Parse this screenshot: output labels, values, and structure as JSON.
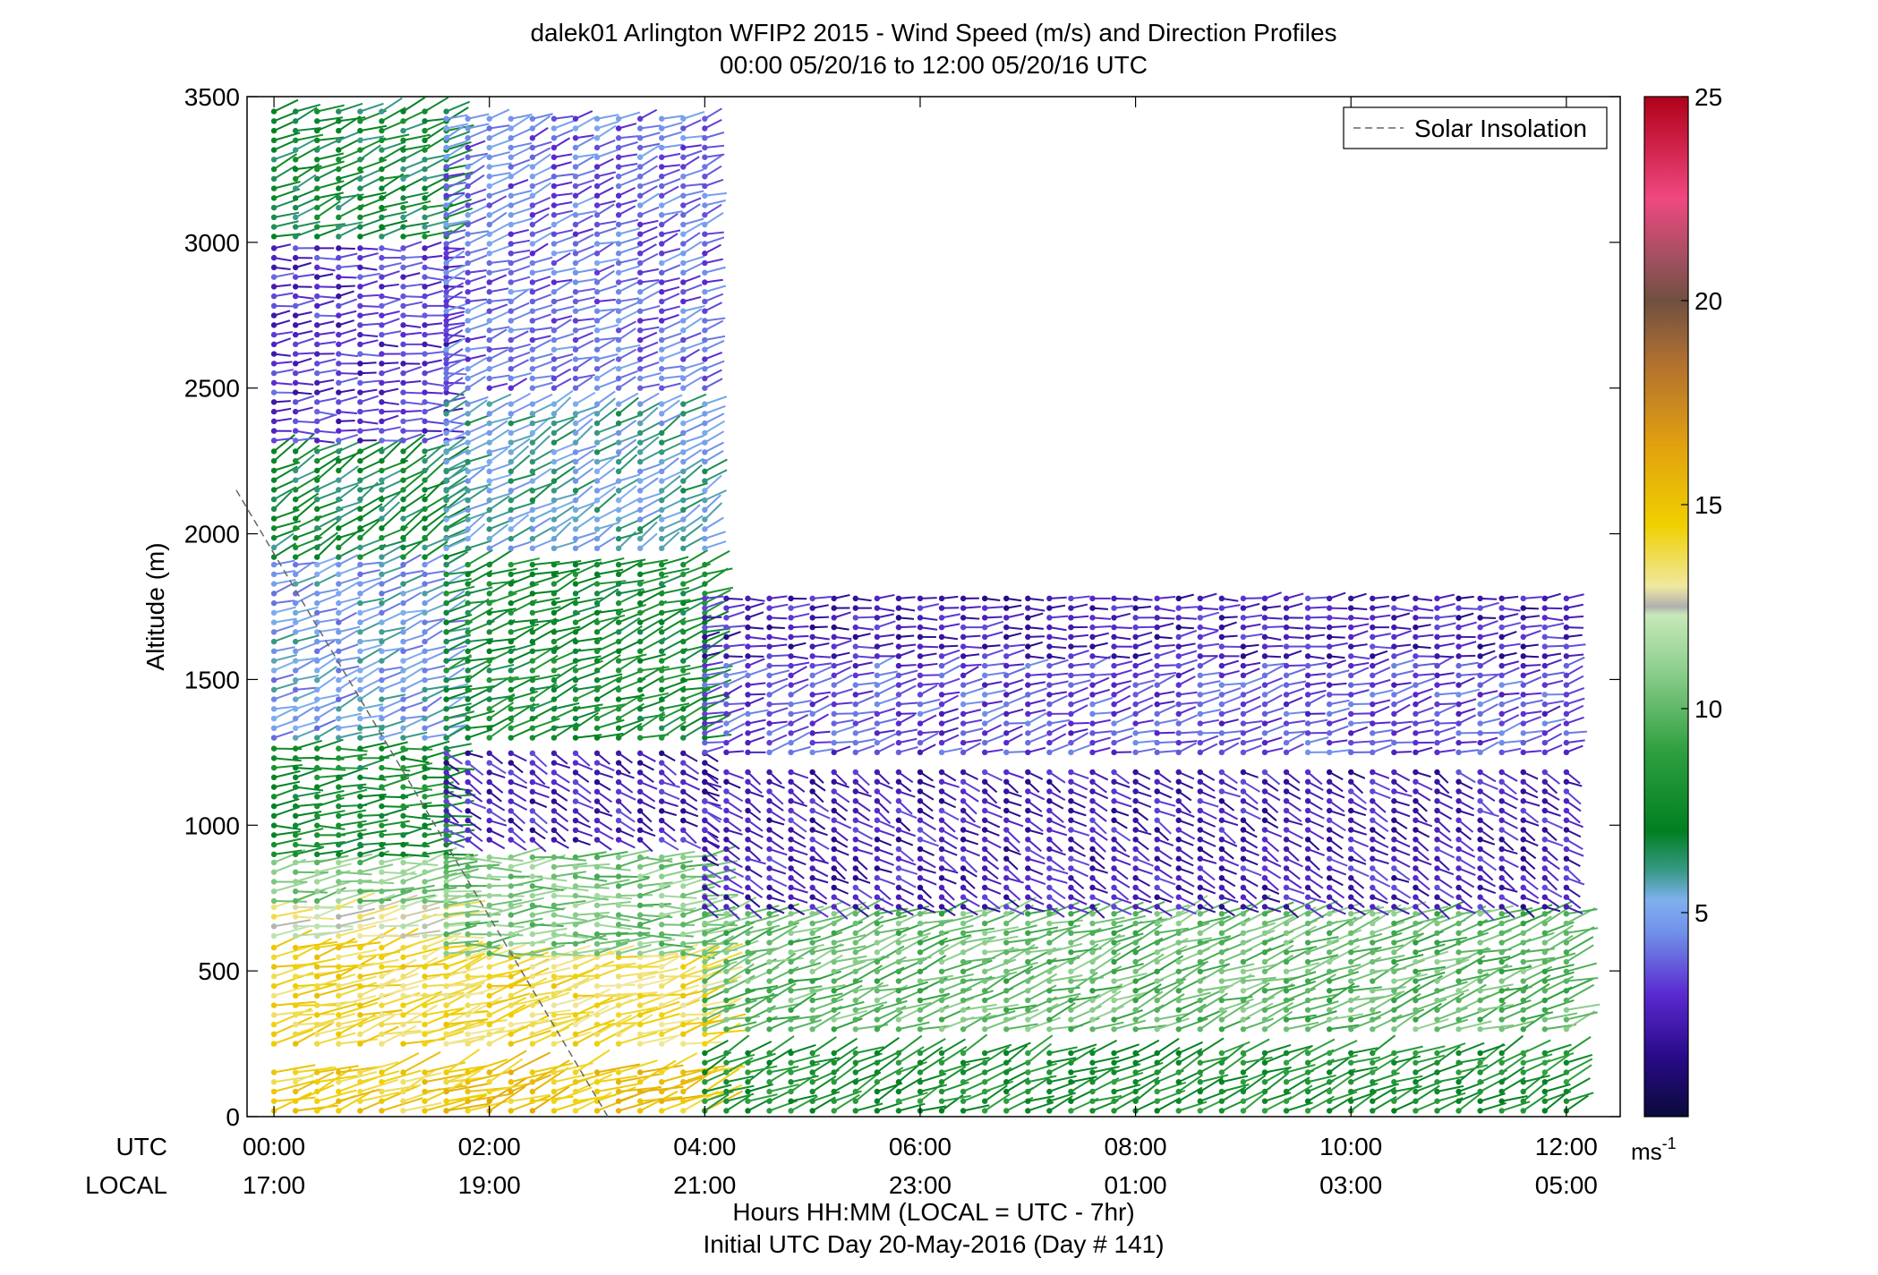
{
  "chart_data": {
    "type": "scatter",
    "title": "dalek01 Arlington WFIP2 2015 - Wind Speed (m/s) and Direction Profiles",
    "subtitle": "00:00 05/20/16 to 12:00 05/20/16  UTC",
    "xlabel": "Hours HH:MM  (LOCAL = UTC - 7hr)",
    "xlabel2": "Initial UTC Day 20-May-2016 (Day # 141)",
    "ylabel": "Altitude (m)",
    "utc_row_label": "UTC",
    "local_row_label": "LOCAL",
    "xlim": [
      -0.25,
      12.5
    ],
    "ylim": [
      0,
      3500
    ],
    "x_ticks": [
      0,
      2,
      4,
      6,
      8,
      10,
      12
    ],
    "x_tick_labels_utc": [
      "00:00",
      "02:00",
      "04:00",
      "06:00",
      "08:00",
      "10:00",
      "12:00"
    ],
    "x_tick_labels_local": [
      "17:00",
      "19:00",
      "21:00",
      "23:00",
      "01:00",
      "03:00",
      "05:00"
    ],
    "y_ticks": [
      0,
      500,
      1000,
      1500,
      2000,
      2500,
      3000,
      3500
    ],
    "y_tick_labels": [
      "0",
      "500",
      "1000",
      "1500",
      "2000",
      "2500",
      "3000",
      "3500"
    ],
    "legend": {
      "entries": [
        "Solar Insolation"
      ],
      "placement": "top-right"
    },
    "solar_insolation_line": {
      "x": [
        -0.35,
        3.1
      ],
      "y": [
        2150,
        0
      ],
      "style": "dashed",
      "color": "#666666"
    },
    "colorbar": {
      "range": [
        0,
        25
      ],
      "ticks": [
        5,
        10,
        15,
        20,
        25
      ],
      "tick_labels": [
        "5",
        "10",
        "15",
        "20",
        "25"
      ],
      "unit_label": "ms",
      "unit_exponent": "-1",
      "stops": [
        {
          "v": 0,
          "c": "#0a0a3a"
        },
        {
          "v": 1.5,
          "c": "#2a0a8a"
        },
        {
          "v": 3,
          "c": "#5a2ad0"
        },
        {
          "v": 4.5,
          "c": "#7090e8"
        },
        {
          "v": 5.3,
          "c": "#80b0f0"
        },
        {
          "v": 6,
          "c": "#3a9a8a"
        },
        {
          "v": 7,
          "c": "#008020"
        },
        {
          "v": 9,
          "c": "#30a040"
        },
        {
          "v": 11,
          "c": "#90d090"
        },
        {
          "v": 12.3,
          "c": "#c8e8b8"
        },
        {
          "v": 12.5,
          "c": "#b0b0b0"
        },
        {
          "v": 13,
          "c": "#f0e8a0"
        },
        {
          "v": 14.5,
          "c": "#f0d000"
        },
        {
          "v": 16.5,
          "c": "#e0a010"
        },
        {
          "v": 18.5,
          "c": "#b07030"
        },
        {
          "v": 20,
          "c": "#705040"
        },
        {
          "v": 21,
          "c": "#a05060"
        },
        {
          "v": 22.5,
          "c": "#f04880"
        },
        {
          "v": 25,
          "c": "#b00018"
        }
      ]
    },
    "wind_barbs_note": "Each mark is a profile sample: dot at (time, altitude), stem direction = wind direction, color = wind speed (m/s)",
    "profiles": [
      {
        "t0": 0.0,
        "t1": 1.6,
        "rows": [
          {
            "z0": 20,
            "z1": 180,
            "spd": 14.5,
            "dir": 250
          },
          {
            "z0": 250,
            "z1": 600,
            "spd": 14.2,
            "dir": 255
          },
          {
            "z0": 620,
            "z1": 720,
            "spd": 12.8,
            "dir": 260
          },
          {
            "z0": 740,
            "z1": 880,
            "spd": 10.5,
            "dir": 260
          },
          {
            "z0": 900,
            "z1": 1280,
            "spd": 7.5,
            "dir": 265
          },
          {
            "z0": 1300,
            "z1": 1900,
            "spd": 5.0,
            "dir": 250
          },
          {
            "z0": 1920,
            "z1": 2300,
            "spd": 7.0,
            "dir": 240
          },
          {
            "z0": 2320,
            "z1": 3000,
            "spd": 3.0,
            "dir": 265
          },
          {
            "z0": 3020,
            "z1": 3450,
            "spd": 7.0,
            "dir": 250
          }
        ]
      },
      {
        "t0": 1.6,
        "t1": 4.0,
        "rows": [
          {
            "z0": 20,
            "z1": 180,
            "spd": 15.0,
            "dir": 250
          },
          {
            "z0": 250,
            "z1": 550,
            "spd": 14.0,
            "dir": 255
          },
          {
            "z0": 560,
            "z1": 900,
            "spd": 10.5,
            "dir": 265
          },
          {
            "z0": 950,
            "z1": 1250,
            "spd": 2.5,
            "dir": 300
          },
          {
            "z0": 1300,
            "z1": 1900,
            "spd": 7.5,
            "dir": 250
          },
          {
            "z0": 1950,
            "z1": 2450,
            "spd": 5.5,
            "dir": 240
          },
          {
            "z0": 2500,
            "z1": 3450,
            "spd": 4.0,
            "dir": 250
          }
        ]
      },
      {
        "t0": 4.0,
        "t1": 12.0,
        "rows": [
          {
            "z0": 20,
            "z1": 250,
            "spd": 8.0,
            "dir": 245
          },
          {
            "z0": 300,
            "z1": 700,
            "spd": 10.0,
            "dir": 250
          },
          {
            "z0": 720,
            "z1": 1200,
            "spd": 2.5,
            "dir": 300
          },
          {
            "z0": 1250,
            "z1": 1550,
            "spd": 3.5,
            "dir": 255
          },
          {
            "z0": 1580,
            "z1": 1780,
            "spd": 2.5,
            "dir": 265
          }
        ]
      }
    ]
  }
}
